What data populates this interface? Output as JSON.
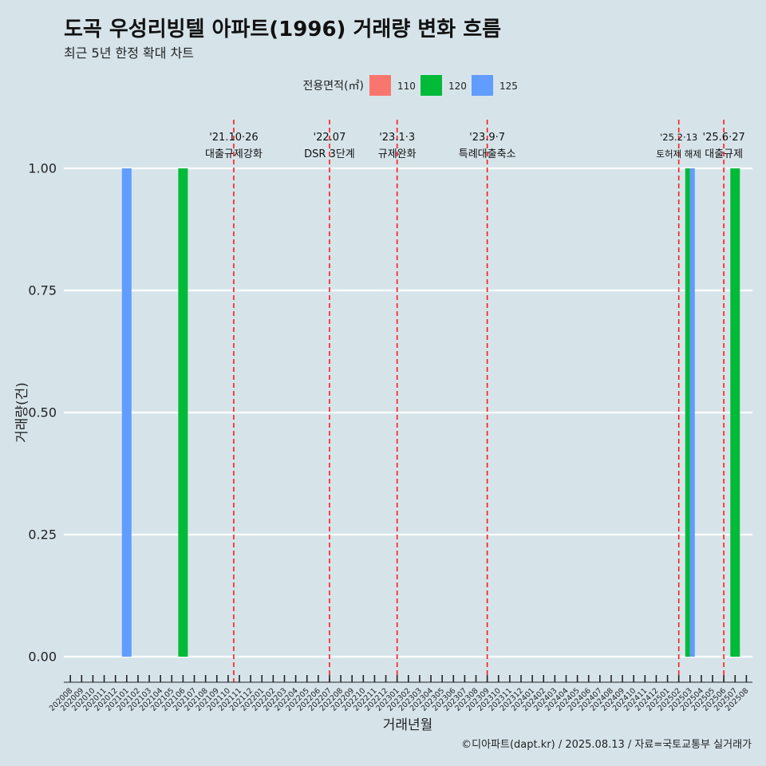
{
  "chart_data": {
    "type": "bar",
    "title": "도곡 우성리빙텔 아파트(1996) 거래량 변화 흐름",
    "subtitle": "최근 5년 한정 확대 차트",
    "xlabel": "거래년월",
    "ylabel": "거래량(건)",
    "caption": "©디아파트(dapt.kr) / 2025.08.13 / 자료=국토교통부 실거래가",
    "ylim": [
      0,
      1.1
    ],
    "yticks": [
      "0.00",
      "0.25",
      "0.50",
      "0.75",
      "1.00"
    ],
    "grid": true,
    "legend": {
      "title": "전용면적(㎡)",
      "position": "top",
      "entries": [
        {
          "name": "110",
          "color": "#f8766d"
        },
        {
          "name": "120",
          "color": "#00ba38"
        },
        {
          "name": "125",
          "color": "#619cff"
        }
      ]
    },
    "categories": [
      "202008",
      "202009",
      "202010",
      "202011",
      "202012",
      "202101",
      "202102",
      "202103",
      "202104",
      "202105",
      "202106",
      "202107",
      "202108",
      "202109",
      "202110",
      "202111",
      "202112",
      "202201",
      "202202",
      "202203",
      "202204",
      "202205",
      "202206",
      "202207",
      "202208",
      "202209",
      "202210",
      "202211",
      "202212",
      "202301",
      "202302",
      "202303",
      "202304",
      "202305",
      "202306",
      "202307",
      "202308",
      "202309",
      "202310",
      "202311",
      "202312",
      "202401",
      "202402",
      "202403",
      "202404",
      "202405",
      "202406",
      "202407",
      "202408",
      "202409",
      "202410",
      "202411",
      "202412",
      "202501",
      "202502",
      "202503",
      "202504",
      "202505",
      "202506",
      "202507",
      "202508"
    ],
    "series": [
      {
        "name": "110",
        "color": "#f8766d",
        "points": []
      },
      {
        "name": "120",
        "color": "#00ba38",
        "points": [
          {
            "x": "202106",
            "y": 1
          },
          {
            "x": "202503",
            "y": 1
          },
          {
            "x": "202507",
            "y": 1
          }
        ]
      },
      {
        "name": "125",
        "color": "#619cff",
        "points": [
          {
            "x": "202101",
            "y": 1
          },
          {
            "x": "202503",
            "y": 1
          }
        ]
      }
    ],
    "annotations": [
      {
        "x": "202110",
        "offset": 0.5,
        "date": "'21.10·26",
        "label": "대출규제강화",
        "small": false
      },
      {
        "x": "202207",
        "offset": 0.0,
        "date": "'22.07",
        "label": "DSR 3단계",
        "small": false
      },
      {
        "x": "202301",
        "offset": 0.0,
        "date": "'23.1·3",
        "label": "규제완화",
        "small": false
      },
      {
        "x": "202309",
        "offset": 0.0,
        "date": "'23.9·7",
        "label": "특례대출축소",
        "small": false
      },
      {
        "x": "202502",
        "offset": 0.0,
        "date": "'25.2·13",
        "label": "토허제 해제",
        "small": true
      },
      {
        "x": "202506",
        "offset": 0.0,
        "date": "'25.6·27",
        "label": "대출규제",
        "small": false
      }
    ]
  }
}
